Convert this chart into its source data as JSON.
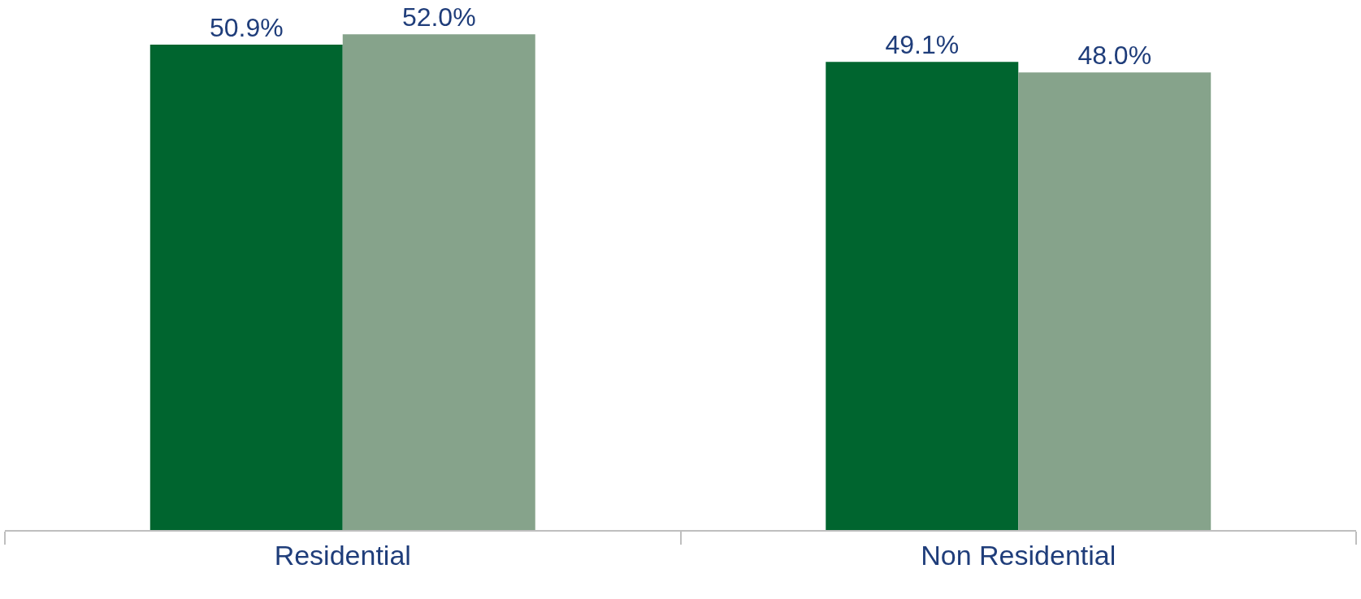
{
  "chart_data": {
    "type": "bar",
    "categories": [
      "Residential",
      "Non Residential"
    ],
    "series": [
      {
        "color": "#00652f",
        "values": [
          50.9,
          49.1
        ],
        "value_labels": [
          "50.9%",
          "49.1%"
        ]
      },
      {
        "color": "#86a38b",
        "values": [
          52.0,
          48.0
        ],
        "value_labels": [
          "52.0%",
          "48.0%"
        ]
      }
    ],
    "legend": false
  }
}
